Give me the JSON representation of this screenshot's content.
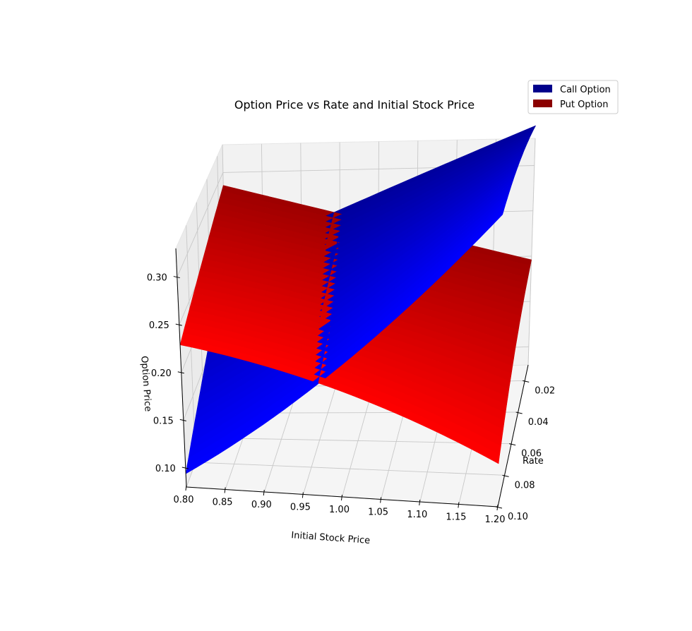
{
  "chart_data": {
    "type": "surface3d",
    "title": "Option Price vs Rate and Initial Stock Price",
    "xlabel": "Initial Stock Price",
    "ylabel": "Rate",
    "zlabel": "Option Price",
    "x_ticks": [
      "0.80",
      "0.85",
      "0.90",
      "0.95",
      "1.00",
      "1.05",
      "1.10",
      "1.15",
      "1.20"
    ],
    "y_ticks": [
      "0.02",
      "0.04",
      "0.06",
      "0.08",
      "0.10"
    ],
    "z_ticks": [
      "0.10",
      "0.15",
      "0.20",
      "0.25",
      "0.30"
    ],
    "xlim": [
      0.8,
      1.2
    ],
    "ylim": [
      0.01,
      0.1
    ],
    "zlim": [
      0.08,
      0.33
    ],
    "legend_position": "top-right",
    "grid": true,
    "series": [
      {
        "name": "Call Option",
        "color": "#00008b",
        "surface_colors": [
          "#00008b",
          "#0000ff"
        ],
        "corners": {
          "x0.80_r0.01": 0.204,
          "x1.20_r0.01": 0.344,
          "x0.80_r0.10": 0.094,
          "x1.20_r0.10": 0.29
        }
      },
      {
        "name": "Put Option",
        "color": "#8b0000",
        "surface_colors": [
          "#8b0000",
          "#ff0000"
        ],
        "corners": {
          "x0.80_r0.01": 0.286,
          "x1.20_r0.01": 0.196,
          "x0.80_r0.10": 0.229,
          "x1.20_r0.10": 0.111
        }
      }
    ]
  }
}
